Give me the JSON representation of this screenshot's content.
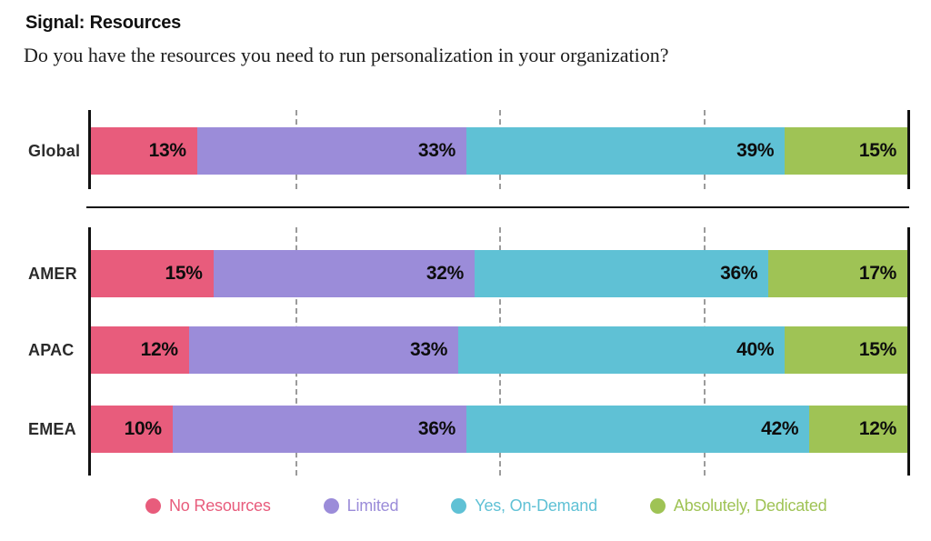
{
  "header": {
    "title": "Signal: Resources",
    "question": "Do you have the resources you need to run personalization in your organization?"
  },
  "chart_data": {
    "type": "bar",
    "stacked": true,
    "orientation": "horizontal",
    "unit": "%",
    "xlim": [
      0,
      100
    ],
    "gridlines_at_percent": [
      25,
      50,
      75
    ],
    "categories": [
      "Global",
      "AMER",
      "APAC",
      "EMEA"
    ],
    "row_groups": [
      [
        0
      ],
      [
        1,
        2,
        3
      ]
    ],
    "series": [
      {
        "name": "No Resources",
        "color": "#E85C7C",
        "values": [
          13,
          15,
          12,
          10
        ]
      },
      {
        "name": "Limited",
        "color": "#9B8CD9",
        "values": [
          33,
          32,
          33,
          36
        ]
      },
      {
        "name": "Yes, On-Demand",
        "color": "#5FC1D5",
        "values": [
          39,
          36,
          40,
          42
        ]
      },
      {
        "name": "Absolutely, Dedicated",
        "color": "#9FC355",
        "values": [
          15,
          17,
          15,
          12
        ]
      }
    ],
    "legend_position": "bottom",
    "grid": "dashed-vertical",
    "axis_line_color": "#111111",
    "value_label_color": "#0d0d0d"
  }
}
